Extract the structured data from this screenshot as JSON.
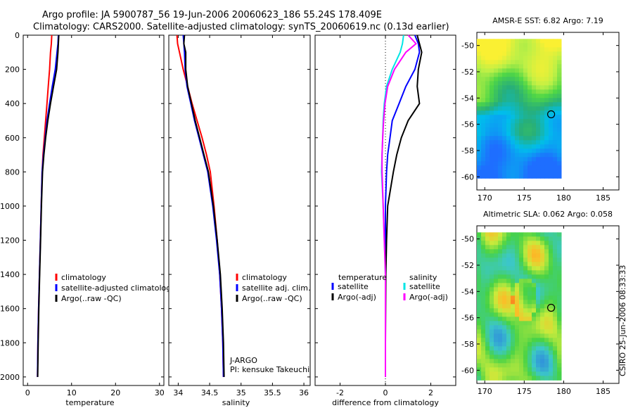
{
  "header": {
    "line1": "Argo profile: JA 5900787_56 19-Jun-2006 20060623_186 55.24S 178.409E",
    "line2": "Climatology: CARS2000. Satellite-adjusted climatology: synTS_20060619.nc (0.13d earlier)"
  },
  "credit": "CSIRO 25-Jun-2006 08:33:33",
  "pi_lines": [
    "J-ARGO",
    "PI: kensuke Takeuchi"
  ],
  "colors": {
    "red": "#ff0000",
    "blue": "#0000ff",
    "black": "#000000",
    "cyan": "#00e5e5",
    "magenta": "#ff00ff"
  },
  "chart_data": [
    {
      "type": "line",
      "name": "temperature-panel",
      "xlabel": "temperature",
      "xlim": [
        -1,
        31
      ],
      "ylim": [
        2050,
        0
      ],
      "xticks": [
        0,
        10,
        20,
        30
      ],
      "yticks": [
        0,
        200,
        400,
        600,
        800,
        1000,
        1200,
        1400,
        1600,
        1800,
        2000
      ],
      "legend": [
        "climatology",
        "satellite-adjusted climatology",
        "Argo(..raw -QC)"
      ],
      "series": [
        {
          "name": "climatology",
          "color": "red",
          "x": [
            5.5,
            5.4,
            5.2,
            5.0,
            4.7,
            4.4,
            4.1,
            3.8,
            3.5,
            3.3,
            3.1,
            2.9,
            2.7,
            2.5,
            2.35,
            2.25
          ],
          "y": [
            0,
            50,
            100,
            200,
            300,
            400,
            500,
            600,
            700,
            800,
            1000,
            1200,
            1400,
            1600,
            1800,
            2000
          ]
        },
        {
          "name": "satellite-adjusted climatology",
          "color": "blue",
          "x": [
            7.0,
            6.9,
            6.7,
            6.3,
            5.6,
            5.0,
            4.4,
            4.0,
            3.6,
            3.3,
            3.1,
            2.9,
            2.7,
            2.5,
            2.35,
            2.25
          ],
          "y": [
            0,
            50,
            100,
            200,
            300,
            400,
            500,
            600,
            700,
            800,
            1000,
            1200,
            1400,
            1600,
            1800,
            2000
          ]
        },
        {
          "name": "Argo(..raw -QC)",
          "color": "black",
          "x": [
            7.1,
            7.0,
            6.9,
            6.6,
            5.9,
            5.2,
            4.6,
            4.1,
            3.7,
            3.4,
            3.15,
            2.95,
            2.75,
            2.55,
            2.4,
            2.3
          ],
          "y": [
            0,
            50,
            100,
            200,
            300,
            400,
            500,
            600,
            700,
            800,
            1000,
            1200,
            1400,
            1600,
            1800,
            2000
          ]
        }
      ]
    },
    {
      "type": "line",
      "name": "salinity-panel",
      "xlabel": "salinity",
      "xlim": [
        33.85,
        36.1
      ],
      "ylim": [
        2050,
        0
      ],
      "xticks": [
        34,
        34.5,
        35,
        35.5,
        36
      ],
      "yticks": [
        0,
        200,
        400,
        600,
        800,
        1000,
        1200,
        1400,
        1600,
        1800,
        2000
      ],
      "legend": [
        "climatology",
        "satellite adj. clim.",
        "Argo(..raw -QC)"
      ],
      "series": [
        {
          "name": "climatology",
          "color": "red",
          "x": [
            33.98,
            33.99,
            34.02,
            34.08,
            34.15,
            34.22,
            34.3,
            34.38,
            34.45,
            34.51,
            34.57,
            34.62,
            34.66,
            34.69,
            34.71,
            34.72
          ],
          "y": [
            0,
            50,
            100,
            200,
            300,
            400,
            500,
            600,
            700,
            800,
            1000,
            1200,
            1400,
            1600,
            1800,
            2000
          ]
        },
        {
          "name": "satellite adj. clim.",
          "color": "blue",
          "x": [
            34.08,
            34.09,
            34.1,
            34.11,
            34.14,
            34.2,
            34.26,
            34.33,
            34.4,
            34.47,
            34.55,
            34.61,
            34.66,
            34.69,
            34.71,
            34.72
          ],
          "y": [
            0,
            50,
            100,
            200,
            300,
            400,
            500,
            600,
            700,
            800,
            1000,
            1200,
            1400,
            1600,
            1800,
            2000
          ]
        },
        {
          "name": "Argo(..raw -QC)",
          "color": "black",
          "x": [
            34.1,
            34.09,
            34.12,
            34.12,
            34.15,
            34.21,
            34.27,
            34.34,
            34.41,
            34.48,
            34.56,
            34.62,
            34.67,
            34.7,
            34.72,
            34.73
          ],
          "y": [
            0,
            50,
            100,
            200,
            300,
            400,
            500,
            600,
            700,
            800,
            1000,
            1200,
            1400,
            1600,
            1800,
            2000
          ]
        }
      ]
    },
    {
      "type": "line",
      "name": "difference-panel",
      "xlabel": "difference from climatology",
      "xlim": [
        -3.1,
        3.1
      ],
      "ylim": [
        2050,
        0
      ],
      "xticks": [
        -2,
        0,
        2
      ],
      "yticks": [
        0,
        200,
        400,
        600,
        800,
        1000,
        1200,
        1400,
        1600,
        1800,
        2000
      ],
      "legend_headers": [
        "temperature",
        "salinity"
      ],
      "legend": [
        "satellite",
        "Argo(-adj)",
        "satellite",
        "Argo(-adj)"
      ],
      "series": [
        {
          "name": "temperature satellite",
          "color": "blue",
          "x": [
            1.3,
            1.45,
            1.5,
            1.3,
            0.9,
            0.6,
            0.3,
            0.2,
            0.1,
            0.05,
            0.0,
            0.0,
            0.0,
            0.0,
            0.0,
            0.0
          ],
          "y": [
            0,
            50,
            100,
            200,
            300,
            400,
            500,
            600,
            700,
            800,
            1000,
            1200,
            1400,
            1600,
            1800,
            2000
          ]
        },
        {
          "name": "temperature Argo(-adj)",
          "color": "black",
          "x": [
            1.4,
            1.5,
            1.6,
            1.45,
            1.4,
            1.5,
            1.0,
            0.7,
            0.5,
            0.35,
            0.1,
            0.05,
            0.02,
            0.01,
            0.0,
            0.0
          ],
          "y": [
            0,
            50,
            100,
            200,
            300,
            400,
            500,
            600,
            700,
            800,
            1000,
            1200,
            1400,
            1600,
            1800,
            2000
          ]
        },
        {
          "name": "salinity satellite",
          "color": "cyan",
          "x": [
            0.8,
            0.75,
            0.65,
            0.3,
            0.05,
            -0.05,
            -0.1,
            -0.12,
            -0.15,
            -0.17,
            -0.1,
            -0.05,
            0.0,
            0.0,
            0.0,
            0.0
          ],
          "y": [
            0,
            50,
            100,
            200,
            300,
            400,
            500,
            600,
            700,
            800,
            1000,
            1200,
            1400,
            1600,
            1800,
            2000
          ]
        },
        {
          "name": "salinity Argo(-adj)",
          "color": "magenta",
          "x": [
            1.0,
            1.35,
            0.9,
            0.4,
            0.1,
            -0.02,
            -0.08,
            -0.12,
            -0.15,
            -0.15,
            -0.1,
            -0.05,
            0.0,
            0.0,
            0.0,
            0.0
          ],
          "y": [
            0,
            50,
            100,
            200,
            300,
            400,
            500,
            600,
            700,
            800,
            1000,
            1200,
            1400,
            1600,
            1800,
            2000
          ]
        }
      ]
    },
    {
      "type": "heatmap",
      "name": "amsr-sst-map",
      "title": "AMSR-E SST: 6.82  Argo: 7.19",
      "xlim": [
        169,
        187
      ],
      "ylim": [
        -61,
        -49
      ],
      "xticks": [
        170,
        175,
        180,
        185
      ],
      "yticks": [
        -50,
        -52,
        -54,
        -56,
        -58,
        -60
      ],
      "argo_point": {
        "lon": 178.409,
        "lat": -55.24
      }
    },
    {
      "type": "heatmap",
      "name": "altimetric-sla-map",
      "title": "Altimetric SLA: 0.062  Argo: 0.058",
      "xlim": [
        169,
        187
      ],
      "ylim": [
        -61,
        -49
      ],
      "xticks": [
        170,
        175,
        180,
        185
      ],
      "yticks": [
        -50,
        -52,
        -54,
        -56,
        -58,
        -60
      ],
      "argo_point": {
        "lon": 178.409,
        "lat": -55.24
      }
    }
  ]
}
